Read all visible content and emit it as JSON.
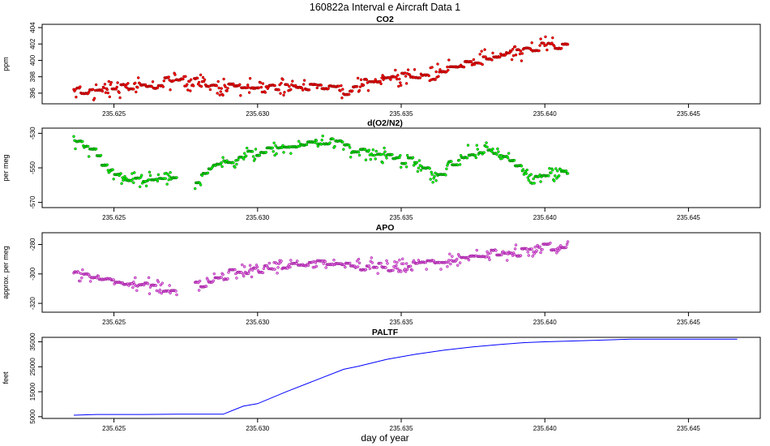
{
  "title": "160822a   Interval e Aircraft Data 1",
  "xlabel": "day of year",
  "x_ticks": [
    235.625,
    235.63,
    235.635,
    235.64,
    235.645
  ],
  "x_tick_labels": [
    "235.625",
    "235.630",
    "235.635",
    "235.640",
    "235.645"
  ],
  "xlim": [
    235.6225,
    235.6475
  ],
  "chart_data": [
    {
      "type": "scatter",
      "title": "CO2",
      "ylabel": "ppm",
      "ylim": [
        394.7,
        404.4
      ],
      "yticks": [
        396,
        398,
        400,
        402,
        404
      ],
      "ytick_labels": [
        "396",
        "398",
        "400",
        "402",
        "404"
      ],
      "show_x_tick_labels": true,
      "marker_fill": "#ff0000",
      "marker_stroke": "#8b0000",
      "x_start": 235.6236,
      "x_end": 235.6408,
      "profile": [
        [
          235.6236,
          396.0
        ],
        [
          235.6245,
          396.4
        ],
        [
          235.626,
          396.9
        ],
        [
          235.6275,
          397.6
        ],
        [
          235.6285,
          396.8
        ],
        [
          235.63,
          396.5
        ],
        [
          235.6315,
          397.0
        ],
        [
          235.6325,
          396.8
        ],
        [
          235.633,
          396.4
        ],
        [
          235.6345,
          397.8
        ],
        [
          235.636,
          398.3
        ],
        [
          235.637,
          399.5
        ],
        [
          235.638,
          400.4
        ],
        [
          235.6385,
          400.7
        ],
        [
          235.639,
          400.8
        ],
        [
          235.6395,
          401.5
        ],
        [
          235.64,
          402.1
        ],
        [
          235.6408,
          402.0
        ]
      ],
      "spread": 0.9
    },
    {
      "type": "scatter",
      "title": "d(O2/N2)",
      "ylabel": "per meg",
      "ylim": [
        -573,
        -527
      ],
      "yticks": [
        -570,
        -550,
        -530
      ],
      "ytick_labels": [
        "-570",
        "-550",
        "-530"
      ],
      "show_x_tick_labels": true,
      "marker_fill": "#00ff00",
      "marker_stroke": "#006400",
      "x_start": 235.6236,
      "x_end": 235.6408,
      "gaps": [
        [
          235.6272,
          235.6278
        ]
      ],
      "profile": [
        [
          235.6236,
          -533
        ],
        [
          235.6243,
          -544
        ],
        [
          235.6252,
          -556
        ],
        [
          235.6262,
          -557
        ],
        [
          235.627,
          -556
        ],
        [
          235.6278,
          -560
        ],
        [
          235.6285,
          -549
        ],
        [
          235.6295,
          -543
        ],
        [
          235.6305,
          -540
        ],
        [
          235.6315,
          -537
        ],
        [
          235.6325,
          -535
        ],
        [
          235.6335,
          -541
        ],
        [
          235.6345,
          -544
        ],
        [
          235.6355,
          -548
        ],
        [
          235.6362,
          -556
        ],
        [
          235.637,
          -544
        ],
        [
          235.638,
          -540
        ],
        [
          235.6388,
          -545
        ],
        [
          235.6395,
          -556
        ],
        [
          235.6408,
          -552
        ]
      ],
      "spread": 4
    },
    {
      "type": "scatter",
      "title": "APO",
      "ylabel": "approx. per meg",
      "ylim": [
        -326,
        -272
      ],
      "yticks": [
        -320,
        -300,
        -280
      ],
      "ytick_labels": [
        "-320",
        "-300",
        "-280"
      ],
      "show_x_tick_labels": true,
      "marker_fill": "#ee82ee",
      "marker_stroke": "#8b008b",
      "x_start": 235.6236,
      "x_end": 235.6408,
      "gaps": [
        [
          235.6272,
          235.6278
        ]
      ],
      "profile": [
        [
          235.6236,
          -298
        ],
        [
          235.625,
          -306
        ],
        [
          235.6262,
          -308
        ],
        [
          235.6272,
          -312
        ],
        [
          235.628,
          -307
        ],
        [
          235.629,
          -300
        ],
        [
          235.6305,
          -295
        ],
        [
          235.632,
          -293
        ],
        [
          235.6335,
          -294
        ],
        [
          235.635,
          -295
        ],
        [
          235.636,
          -292
        ],
        [
          235.637,
          -290
        ],
        [
          235.638,
          -287
        ],
        [
          235.639,
          -285
        ],
        [
          235.64,
          -282
        ],
        [
          235.6408,
          -281
        ]
      ],
      "spread": 4.5
    },
    {
      "type": "line",
      "title": "PALTF",
      "ylabel": "feet",
      "ylim": [
        4300,
        36800
      ],
      "yticks": [
        5000,
        15000,
        25000,
        35000
      ],
      "ytick_labels": [
        "5000",
        "15000",
        "25000",
        "35000"
      ],
      "show_x_tick_labels": true,
      "color": "#0000ff",
      "x": [
        235.6236,
        235.6244,
        235.626,
        235.6272,
        235.628,
        235.6288,
        235.6295,
        235.63,
        235.631,
        235.632,
        235.633,
        235.6335,
        235.6345,
        235.6355,
        235.6365,
        235.6375,
        235.6385,
        235.6393,
        235.64,
        235.6412,
        235.643,
        235.6467
      ],
      "y": [
        5600,
        5900,
        5900,
        6000,
        6000,
        6000,
        9200,
        10200,
        15000,
        19500,
        24000,
        25200,
        28000,
        30000,
        31700,
        33000,
        34000,
        34700,
        35000,
        35400,
        36100,
        36100
      ]
    }
  ]
}
